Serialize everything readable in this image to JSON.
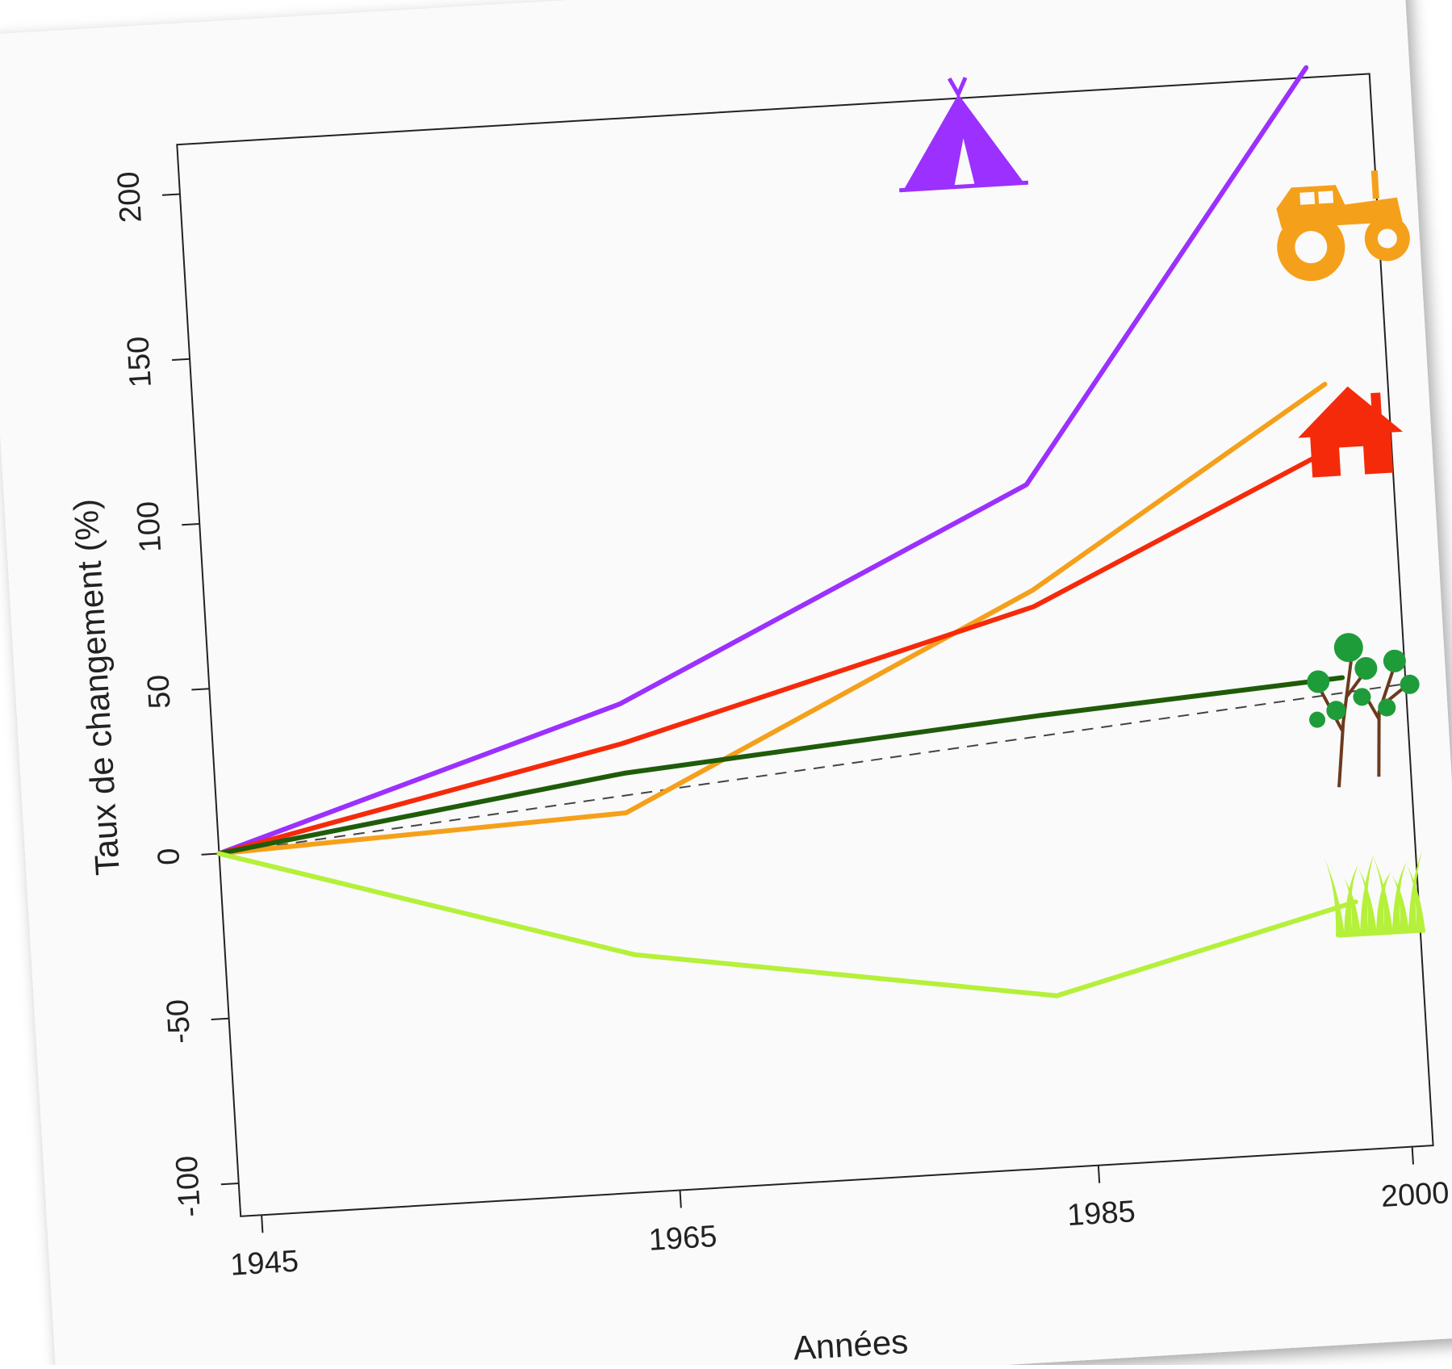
{
  "chart_data": {
    "type": "line",
    "xlabel": "Années",
    "ylabel": "Taux de changement (%)",
    "xlim": [
      1944,
      2001
    ],
    "ylim": [
      -110,
      215
    ],
    "x_ticks": [
      1945,
      1965,
      1985,
      2000
    ],
    "y_ticks": [
      -100,
      -50,
      0,
      50,
      100,
      150,
      200
    ],
    "grid": false,
    "legend": "icons at right end of each series",
    "reference_line": {
      "label": "",
      "y_start": 0,
      "y_end": 30,
      "style": "dashed",
      "color": "#444444"
    },
    "series": [
      {
        "icon": "tent-icon",
        "color": "#9b30ff",
        "x": [
          1944,
          1963.5,
          1983.5,
          1998
        ],
        "y": [
          0,
          38,
          97,
          218
        ]
      },
      {
        "icon": "tractor-icon",
        "color": "#f5a01a",
        "x": [
          1944,
          1963.5,
          1983.5,
          1998
        ],
        "y": [
          0,
          5,
          65,
          122
        ]
      },
      {
        "icon": "house-icon",
        "color": "#f52a0a",
        "x": [
          1944,
          1963.5,
          1983.5,
          1998
        ],
        "y": [
          0,
          26,
          60,
          102
        ]
      },
      {
        "icon": "trees-icon",
        "color": "#1f5c0a",
        "x": [
          1944,
          1963.5,
          1983.5,
          1998
        ],
        "y": [
          0,
          17,
          27,
          33
        ]
      },
      {
        "icon": "grass-icon",
        "color": "#b5f03a",
        "x": [
          1944,
          1963.5,
          1983.5,
          1998
        ],
        "y": [
          0,
          -38,
          -58,
          -35
        ]
      }
    ]
  }
}
